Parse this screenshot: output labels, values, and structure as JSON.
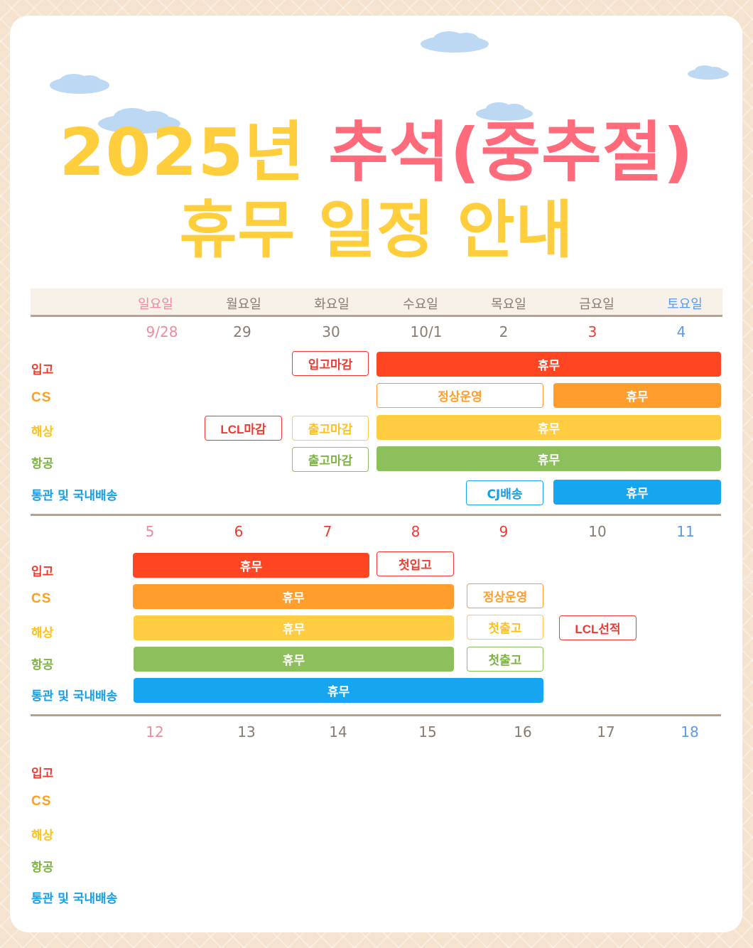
{
  "title": {
    "line1_year": "2025년",
    "line1_holiday": "추석(중추절)",
    "line2": "휴무 일정 안내"
  },
  "colors": {
    "title_yellow": "#ffce3d",
    "title_pink": "#ff6b7a",
    "red": "#ff4522",
    "orange": "#ff9e2c",
    "yellow": "#ffcc42",
    "green": "#8dc05c",
    "blue": "#16a6ef",
    "background": "#f6e3cf"
  },
  "days": [
    "일요일",
    "월요일",
    "화요일",
    "수요일",
    "목요일",
    "금요일",
    "토요일"
  ],
  "categories": {
    "ig": "입고",
    "cs": "CS",
    "hs": "해상",
    "hg": "항공",
    "tg": "통관 및 국내배송"
  },
  "weeks": [
    {
      "dates": [
        "9/28",
        "29",
        "30",
        "10/1",
        "2",
        "3",
        "4"
      ],
      "events": {
        "ig_close": "입고마감",
        "ig_off": "휴무",
        "cs_normal": "정상운영",
        "cs_off": "휴무",
        "hs_lcl_close": "LCL마감",
        "hs_out_close": "출고마감",
        "hs_off": "휴무",
        "hg_out_close": "출고마감",
        "hg_off": "휴무",
        "tg_cj": "CJ배송",
        "tg_off": "휴무"
      }
    },
    {
      "dates": [
        "5",
        "6",
        "7",
        "8",
        "9",
        "10",
        "11"
      ],
      "events": {
        "ig_off": "휴무",
        "ig_first": "첫입고",
        "cs_off": "휴무",
        "cs_normal": "정상운영",
        "hs_off": "휴무",
        "hs_first": "첫출고",
        "hs_lcl": "LCL선적",
        "hg_off": "휴무",
        "hg_first": "첫출고",
        "tg_off": "휴무"
      }
    },
    {
      "dates": [
        "12",
        "13",
        "14",
        "15",
        "16",
        "17",
        "18"
      ]
    }
  ],
  "edge_text": "휴"
}
